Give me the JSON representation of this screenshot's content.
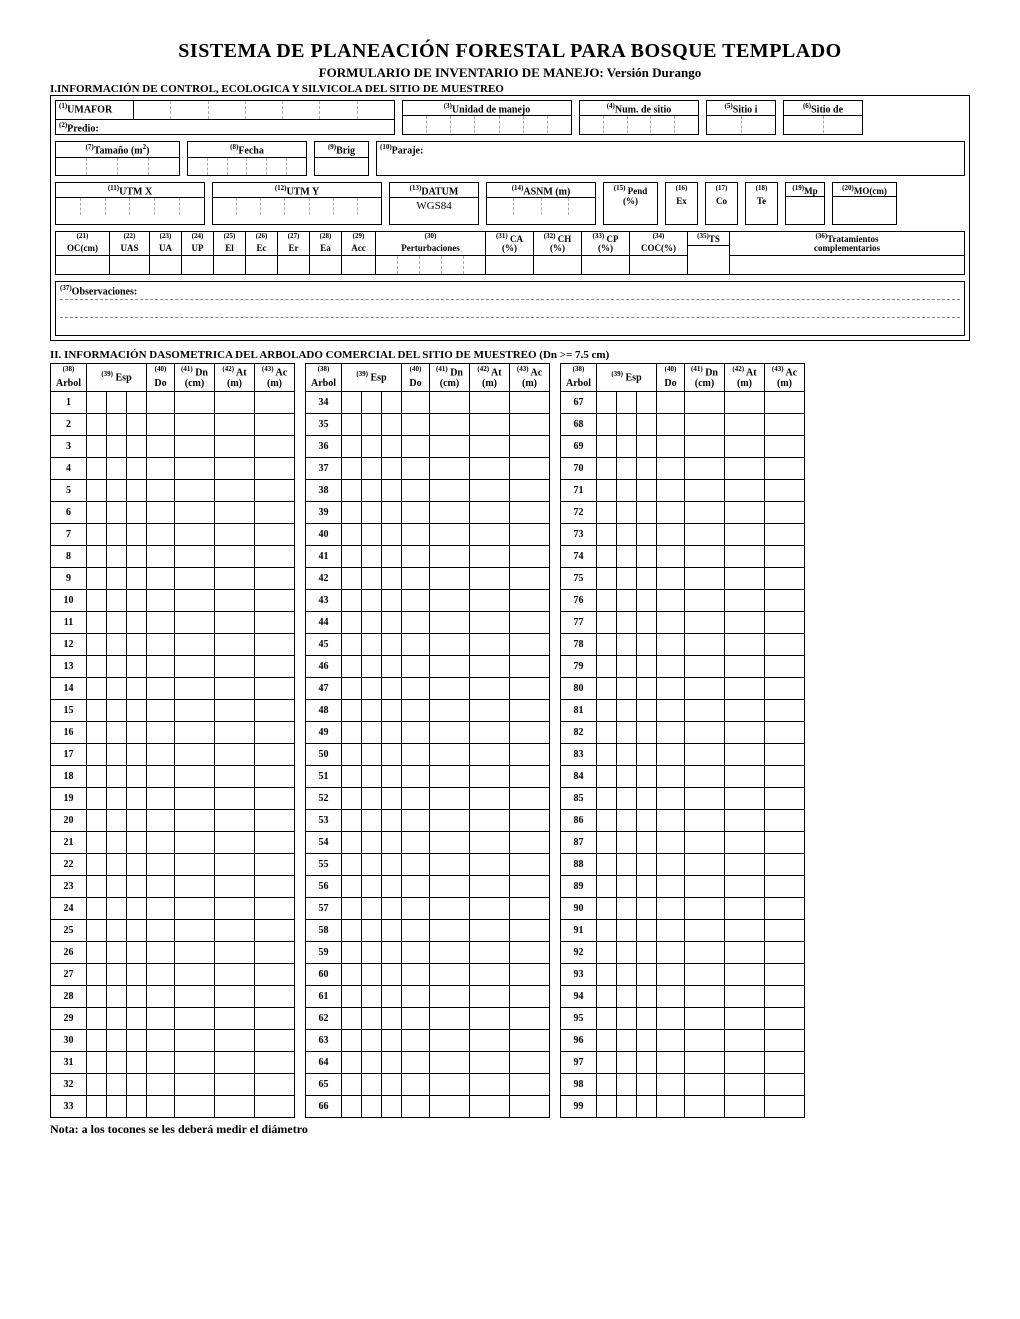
{
  "title": "SISTEMA DE PLANEACIÓN FORESTAL PARA BOSQUE TEMPLADO",
  "subtitle": "FORMULARIO DE INVENTARIO DE MANEJO: Versión Durango",
  "section1": "I.INFORMACIÓN DE CONTROL, ECOLOGICA Y SILVICOLA DEL SITIO DE MUESTREO",
  "section2": "II. INFORMACIÓN DASOMETRICA DEL ARBOLADO COMERCIAL DEL SITIO DE MUESTREO (Dn >= 7.5 cm)",
  "note": "Nota: a los tocones se les deberá medir el diámetro",
  "labels": {
    "umafor": "(1)UMAFOR",
    "predio": "(2)Predio:",
    "unidad": "(3)Unidad de manejo",
    "numsitio": "(4)Num. de sitio",
    "sitioi": "(5)Sitio i",
    "sitiode": "(6)Sitio de",
    "tamano": "(7)Tamaño (m²)",
    "fecha": "(8)Fecha",
    "brig": "(9)Brig",
    "paraje": "(10)Paraje:",
    "utmx": "(11)UTM X",
    "utmy": "(12)UTM Y",
    "datum": "(13)DATUM",
    "asnm": "(14)ASNM (m)",
    "pend": "(15) Pend (%)",
    "ex": "(16) Ex",
    "co": "(17) Co",
    "te": "(18) Te",
    "mp": "(19)Mp",
    "mo": "(20)MO(cm)",
    "oc": "(21) OC(cm)",
    "uas": "(22) UAS",
    "ua": "(23) UA",
    "up": "(24) UP",
    "el": "(25) El",
    "ec": "(26) Ec",
    "er": "(27) Er",
    "ea": "(28) Ea",
    "acc": "(29) Acc",
    "pert": "(30) Perturbaciones",
    "ca": "(31) CA (%)",
    "ch": "(32) CH (%)",
    "cp": "(33) CP (%)",
    "coc": "(34) COC(%)",
    "ts": "(35)TS",
    "trat": "(36)Tratamientos complementarios",
    "obs": "(37)Observaciones:",
    "datum_val": "WGS84"
  },
  "col2": {
    "arbol": "(38) Arbol",
    "esp": "(39) Esp",
    "do": "(40) Do",
    "dn": "(41) Dn (cm)",
    "at": "(42) At (m)",
    "ac": "(43) Ac (m)"
  },
  "rows": {
    "g1": [
      1,
      2,
      3,
      4,
      5,
      6,
      7,
      8,
      9,
      10,
      11,
      12,
      13,
      14,
      15,
      16,
      17,
      18,
      19,
      20,
      21,
      22,
      23,
      24,
      25,
      26,
      27,
      28,
      29,
      30,
      31,
      32,
      33
    ],
    "g2": [
      34,
      35,
      36,
      37,
      38,
      39,
      40,
      41,
      42,
      43,
      44,
      45,
      46,
      47,
      48,
      49,
      50,
      51,
      52,
      53,
      54,
      55,
      56,
      57,
      58,
      59,
      60,
      61,
      62,
      63,
      64,
      65,
      66
    ],
    "g3": [
      67,
      68,
      69,
      70,
      71,
      72,
      73,
      74,
      75,
      76,
      77,
      78,
      79,
      80,
      81,
      82,
      83,
      84,
      85,
      86,
      87,
      88,
      89,
      90,
      91,
      92,
      93,
      94,
      95,
      96,
      97,
      98,
      99
    ]
  }
}
